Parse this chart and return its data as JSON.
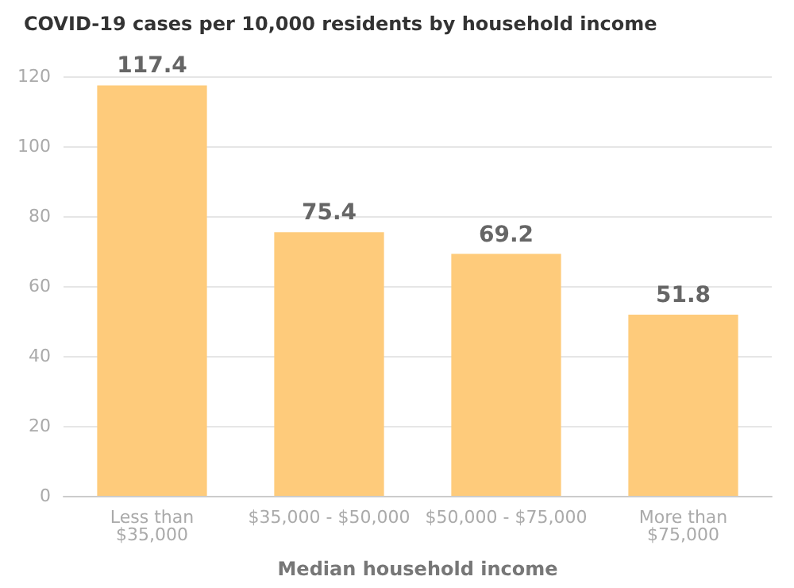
{
  "chart_data": {
    "type": "bar",
    "title": "COVID-19 cases per 10,000 residents by household income",
    "xlabel": "Median household income",
    "categories": [
      "Less than\n$35,000",
      "$35,000 - $50,000",
      "$50,000 - $75,000",
      "More than\n$75,000"
    ],
    "values": [
      117.4,
      75.4,
      69.2,
      51.8
    ],
    "color": "#fecb7b",
    "data_labels": true,
    "ylim": [
      0,
      120
    ],
    "yticks": [
      0,
      20,
      40,
      60,
      80,
      100,
      120
    ],
    "grid": "y"
  }
}
